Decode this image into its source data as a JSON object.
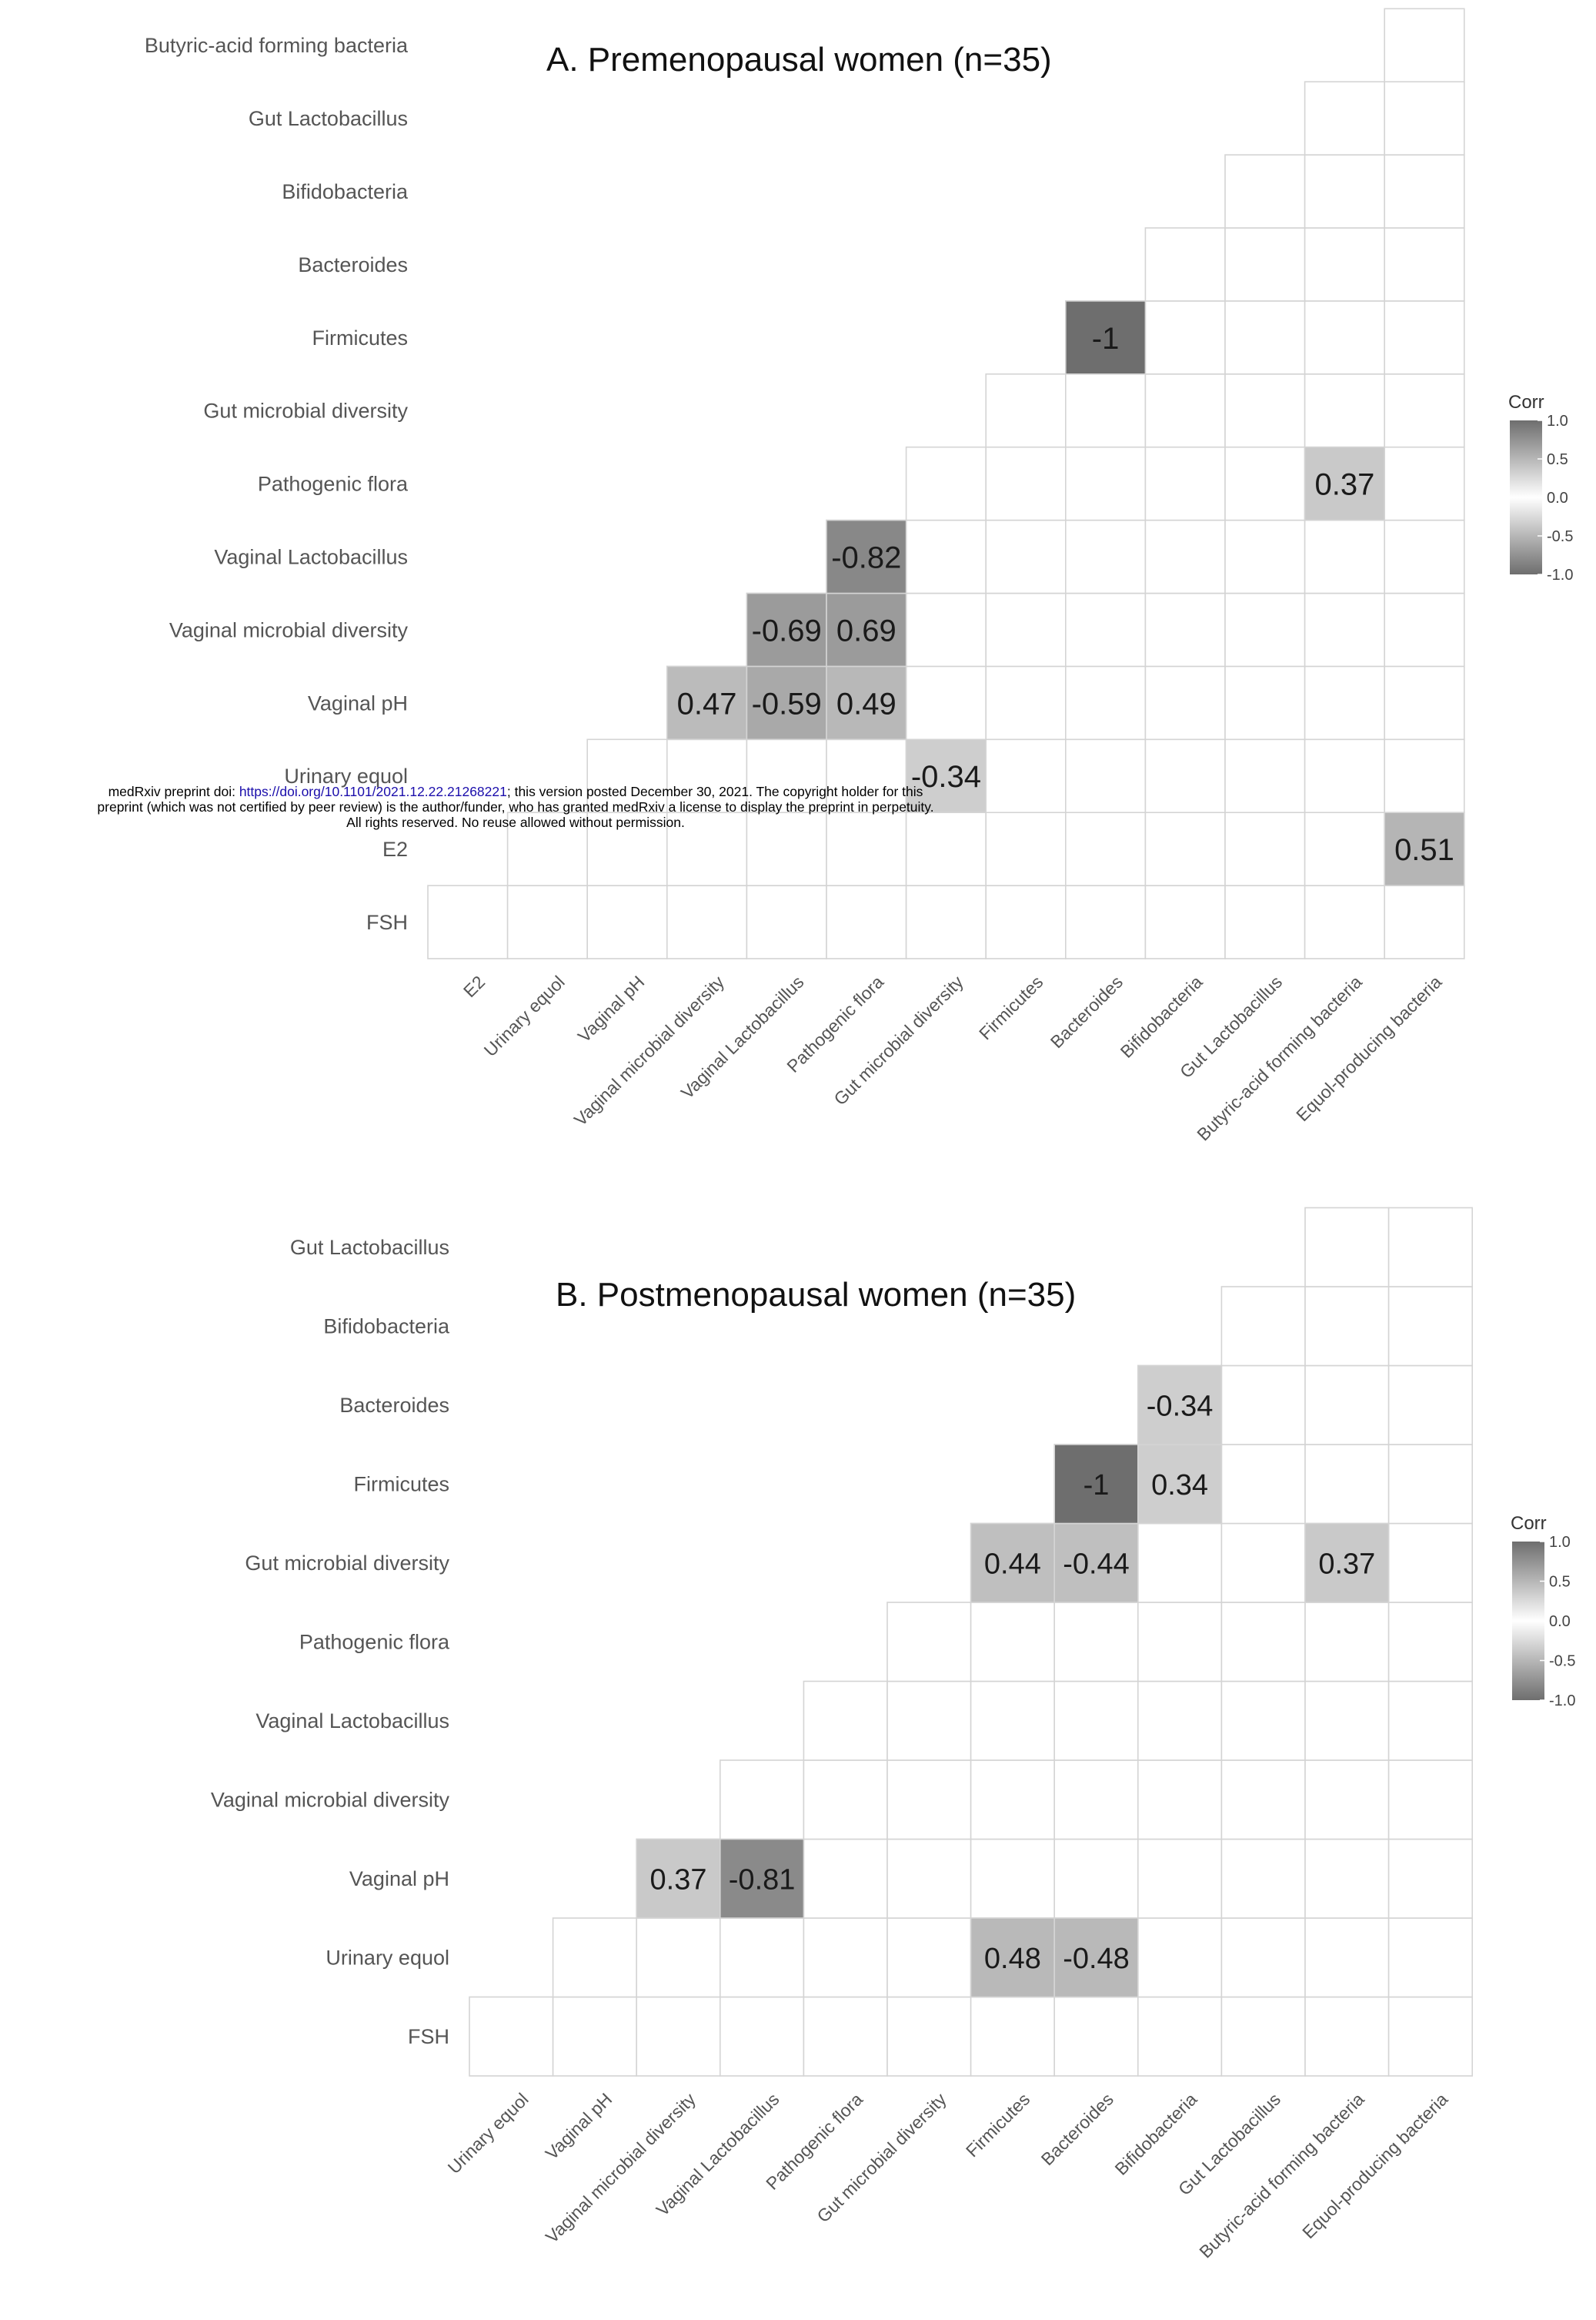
{
  "watermark": {
    "line1_pre": "medRxiv preprint doi: ",
    "doi_link": "https://doi.org/10.1101/2021.12.22.21268221",
    "line1_post": "; this version posted December 30, 2021. The copyright holder for this",
    "line2": "preprint (which was not certified by peer review) is the author/funder, who has granted medRxiv a license to display the preprint in perpetuity.",
    "line3": "All rights reserved. No reuse allowed without permission."
  },
  "chart_data": [
    {
      "type": "heatmap",
      "title": "A. Premenopausal women (n=35)",
      "legend": {
        "title": "Corr",
        "ticks": [
          "1.0",
          "0.5",
          "0.0",
          "-0.5",
          "-1.0"
        ],
        "placement": "right"
      },
      "x_labels": [
        "E2",
        "Urinary equol",
        "Vaginal pH",
        "Vaginal microbial diversity",
        "Vaginal Lactobacillus",
        "Pathogenic flora",
        "Gut microbial diversity",
        "Firmicutes",
        "Bacteroides",
        "Bifidobacteria",
        "Gut Lactobacillus",
        "Butyric-acid forming bacteria",
        "Equol-producing bacteria"
      ],
      "y_labels": [
        "FSH",
        "E2",
        "Urinary equol",
        "Vaginal pH",
        "Vaginal microbial diversity",
        "Vaginal Lactobacillus",
        "Pathogenic flora",
        "Gut microbial diversity",
        "Firmicutes",
        "Bacteroides",
        "Bifidobacteria",
        "Gut Lactobacillus",
        "Butyric-acid forming bacteria"
      ],
      "cells": [
        {
          "row": "E2",
          "col": "Equol-producing bacteria",
          "value": 0.51,
          "label": "0.51"
        },
        {
          "row": "Urinary equol",
          "col": "Gut microbial diversity",
          "value": -0.34,
          "label": "-0.34"
        },
        {
          "row": "Vaginal pH",
          "col": "Vaginal microbial diversity",
          "value": 0.47,
          "label": "0.47"
        },
        {
          "row": "Vaginal pH",
          "col": "Vaginal Lactobacillus",
          "value": -0.59,
          "label": "-0.59"
        },
        {
          "row": "Vaginal pH",
          "col": "Pathogenic flora",
          "value": 0.49,
          "label": "0.49"
        },
        {
          "row": "Vaginal microbial diversity",
          "col": "Vaginal Lactobacillus",
          "value": -0.69,
          "label": "-0.69"
        },
        {
          "row": "Vaginal microbial diversity",
          "col": "Pathogenic flora",
          "value": 0.69,
          "label": "0.69"
        },
        {
          "row": "Vaginal Lactobacillus",
          "col": "Pathogenic flora",
          "value": -0.82,
          "label": "-0.82"
        },
        {
          "row": "Pathogenic flora",
          "col": "Butyric-acid forming bacteria",
          "value": 0.37,
          "label": "0.37"
        },
        {
          "row": "Firmicutes",
          "col": "Bacteroides",
          "value": -1,
          "label": "-1"
        }
      ]
    },
    {
      "type": "heatmap",
      "title": "B. Postmenopausal women (n=35)",
      "legend": {
        "title": "Corr",
        "ticks": [
          "1.0",
          "0.5",
          "0.0",
          "-0.5",
          "-1.0"
        ],
        "placement": "right"
      },
      "x_labels": [
        "Urinary equol",
        "Vaginal pH",
        "Vaginal microbial diversity",
        "Vaginal Lactobacillus",
        "Pathogenic flora",
        "Gut microbial diversity",
        "Firmicutes",
        "Bacteroides",
        "Bifidobacteria",
        "Gut Lactobacillus",
        "Butyric-acid forming bacteria",
        "Equol-producing bacteria"
      ],
      "y_labels": [
        "FSH",
        "Urinary equol",
        "Vaginal pH",
        "Vaginal microbial diversity",
        "Vaginal Lactobacillus",
        "Pathogenic flora",
        "Gut microbial diversity",
        "Firmicutes",
        "Bacteroides",
        "Bifidobacteria",
        "Gut Lactobacillus"
      ],
      "cells": [
        {
          "row": "Urinary equol",
          "col": "Firmicutes",
          "value": 0.48,
          "label": "0.48"
        },
        {
          "row": "Urinary equol",
          "col": "Bacteroides",
          "value": -0.48,
          "label": "-0.48"
        },
        {
          "row": "Vaginal pH",
          "col": "Vaginal microbial diversity",
          "value": 0.37,
          "label": "0.37"
        },
        {
          "row": "Vaginal pH",
          "col": "Vaginal Lactobacillus",
          "value": -0.81,
          "label": "-0.81"
        },
        {
          "row": "Gut microbial diversity",
          "col": "Firmicutes",
          "value": 0.44,
          "label": "0.44"
        },
        {
          "row": "Gut microbial diversity",
          "col": "Bacteroides",
          "value": -0.44,
          "label": "-0.44"
        },
        {
          "row": "Gut microbial diversity",
          "col": "Butyric-acid forming bacteria",
          "value": 0.37,
          "label": "0.37"
        },
        {
          "row": "Firmicutes",
          "col": "Bacteroides",
          "value": -1,
          "label": "-1"
        },
        {
          "row": "Firmicutes",
          "col": "Bifidobacteria",
          "value": 0.34,
          "label": "0.34"
        },
        {
          "row": "Bacteroides",
          "col": "Bifidobacteria",
          "value": -0.34,
          "label": "-0.34"
        }
      ]
    }
  ]
}
